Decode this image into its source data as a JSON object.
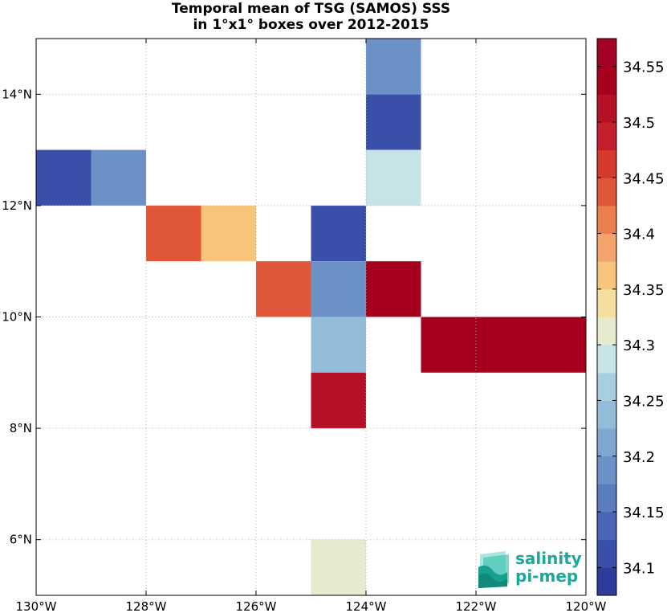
{
  "title_line1": "Temporal mean of TSG (SAMOS) SSS",
  "title_line2": "in 1°x1° boxes over 2012-2015",
  "chart_data": {
    "type": "heatmap",
    "title": "Temporal mean of TSG (SAMOS) SSS in 1°x1° boxes over 2012-2015",
    "xlim": [
      -130,
      -120
    ],
    "ylim": [
      5,
      15
    ],
    "grid": true,
    "x_ticks": [
      -130,
      -128,
      -126,
      -124,
      -122,
      -120
    ],
    "x_tick_labels": [
      "130°W",
      "128°W",
      "126°W",
      "124°W",
      "122°W",
      "120°W"
    ],
    "y_ticks": [
      6,
      8,
      10,
      12,
      14
    ],
    "y_tick_labels": [
      "6°N",
      "8°N",
      "10°N",
      "12°N",
      "14°N"
    ],
    "cells": [
      {
        "lon": [
          -124,
          -123
        ],
        "lat": [
          14,
          15
        ],
        "value": 34.19
      },
      {
        "lon": [
          -124,
          -123
        ],
        "lat": [
          13,
          14
        ],
        "value": 34.12
      },
      {
        "lon": [
          -124,
          -123
        ],
        "lat": [
          12,
          13
        ],
        "value": 34.28
      },
      {
        "lon": [
          -130,
          -129
        ],
        "lat": [
          12,
          13
        ],
        "value": 34.12
      },
      {
        "lon": [
          -129,
          -128
        ],
        "lat": [
          12,
          13
        ],
        "value": 34.19
      },
      {
        "lon": [
          -128,
          -127
        ],
        "lat": [
          11,
          12
        ],
        "value": 34.43
      },
      {
        "lon": [
          -127,
          -126
        ],
        "lat": [
          11,
          12
        ],
        "value": 34.36
      },
      {
        "lon": [
          -125,
          -124
        ],
        "lat": [
          11,
          12
        ],
        "value": 34.11
      },
      {
        "lon": [
          -126,
          -125
        ],
        "lat": [
          10,
          11
        ],
        "value": 34.43
      },
      {
        "lon": [
          -125,
          -124
        ],
        "lat": [
          10,
          11
        ],
        "value": 34.19
      },
      {
        "lon": [
          -124,
          -123
        ],
        "lat": [
          10,
          11
        ],
        "value": 34.55
      },
      {
        "lon": [
          -125,
          -124
        ],
        "lat": [
          9,
          10
        ],
        "value": 34.25
      },
      {
        "lon": [
          -123,
          -120
        ],
        "lat": [
          9,
          10
        ],
        "value": 34.55
      },
      {
        "lon": [
          -125,
          -124
        ],
        "lat": [
          8,
          9
        ],
        "value": 34.52
      },
      {
        "lon": [
          -125,
          -124
        ],
        "lat": [
          5,
          6
        ],
        "value": 34.31
      }
    ],
    "colorbar": {
      "min": 34.075,
      "max": 34.575,
      "ticks": [
        34.1,
        34.15,
        34.2,
        34.25,
        34.3,
        34.35,
        34.4,
        34.45,
        34.5,
        34.55
      ],
      "tick_labels": [
        "34.1",
        "34.15",
        "34.2",
        "34.25",
        "34.3",
        "34.35",
        "34.4",
        "34.45",
        "34.5",
        "34.55"
      ],
      "colors_bottom_to_top": [
        "#2f3c9c",
        "#3a4fa8",
        "#4a66b4",
        "#5a7dbd",
        "#6c91c6",
        "#7fa6cf",
        "#92bcd8",
        "#a8cfe0",
        "#c6e3e8",
        "#e6eacf",
        "#f4df9e",
        "#f7c47c",
        "#f3a46c",
        "#eb7f50",
        "#e05638",
        "#d43a2e",
        "#c41f2c",
        "#b61227",
        "#a7001f",
        "#a50026"
      ]
    }
  },
  "logo": {
    "line1": "salinity",
    "line2": "pi-mep",
    "color": "#1aa89a"
  }
}
